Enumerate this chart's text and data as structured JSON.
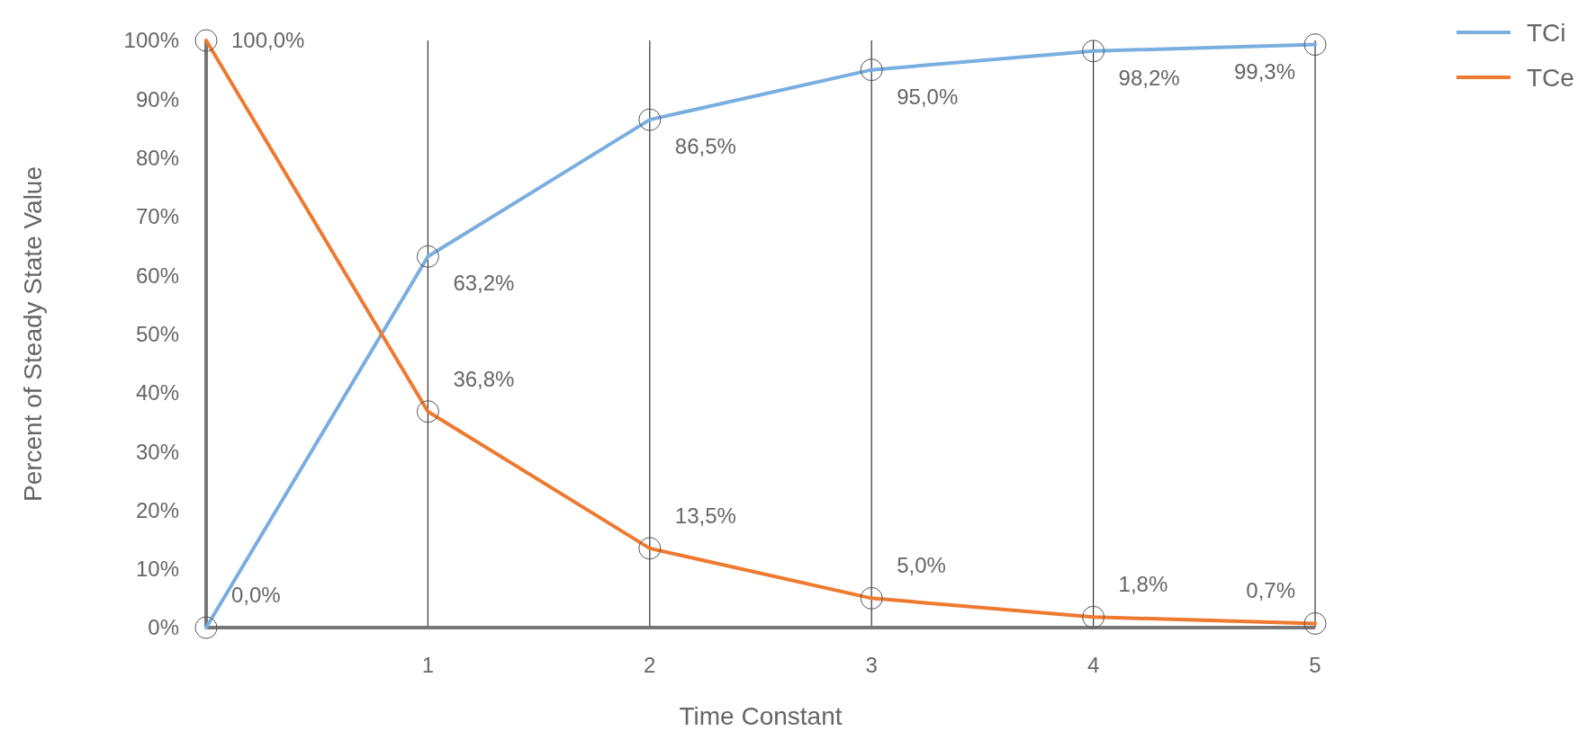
{
  "chart_data": {
    "type": "line",
    "xlabel": "Time Constant",
    "ylabel": "Percent of Steady State Value",
    "x": [
      0,
      1,
      2,
      3,
      4,
      5
    ],
    "xlim": [
      0,
      5
    ],
    "xticks": [
      1,
      2,
      3,
      4,
      5
    ],
    "ylim": [
      0,
      100
    ],
    "yticks": [
      {
        "value": 0,
        "label": "0%"
      },
      {
        "value": 10,
        "label": "10%"
      },
      {
        "value": 20,
        "label": "20%"
      },
      {
        "value": 30,
        "label": "30%"
      },
      {
        "value": 40,
        "label": "40%"
      },
      {
        "value": 50,
        "label": "50%"
      },
      {
        "value": 60,
        "label": "60%"
      },
      {
        "value": 70,
        "label": "70%"
      },
      {
        "value": 80,
        "label": "80%"
      },
      {
        "value": 90,
        "label": "90%"
      },
      {
        "value": 100,
        "label": "100%"
      }
    ],
    "series": [
      {
        "name": "TCi",
        "color": "#7aaee0",
        "values": [
          0,
          63.2,
          86.5,
          95.0,
          98.2,
          99.3
        ],
        "value_labels": [
          "0,0%",
          "63,2%",
          "86,5%",
          "95,0%",
          "98,2%",
          "99,3%"
        ]
      },
      {
        "name": "TCe",
        "color": "#ee7a30",
        "values": [
          100,
          36.8,
          13.5,
          5.0,
          1.8,
          0.7
        ],
        "value_labels": [
          "100,0%",
          "36,8%",
          "13,5%",
          "5,0%",
          "1,8%",
          "0,7%"
        ]
      }
    ],
    "grid": "x",
    "legend": "top right",
    "marker": "circle",
    "line_style": "solid"
  }
}
